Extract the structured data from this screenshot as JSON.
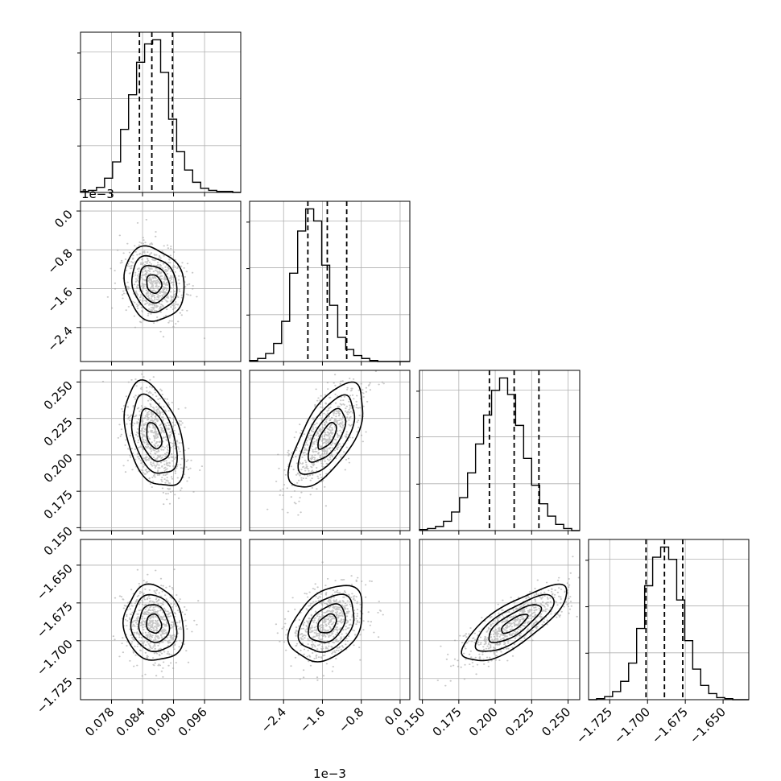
{
  "chart_data": {
    "type": "corner",
    "grid": true,
    "offset_labels": {
      "x_param2": "1e−3",
      "y_param2": "1e−3"
    },
    "params": [
      {
        "range": [
          0.072,
          0.103
        ],
        "ticks": [
          0.078,
          0.084,
          0.09,
          0.096
        ],
        "tick_labels": [
          "0.078",
          "0.084",
          "0.090",
          "0.096"
        ],
        "mean": 0.0862,
        "sigma": 0.0029,
        "quantiles": [
          0.0834,
          0.0858,
          0.0898
        ]
      },
      {
        "range": [
          -3.1,
          0.2
        ],
        "ticks": [
          -2.4,
          -1.6,
          -0.8,
          0.0
        ],
        "tick_labels": [
          "−2.4",
          "−1.6",
          "−0.8",
          "0.0"
        ],
        "mean": -1.5,
        "sigma": 0.38,
        "quantiles": [
          -1.9,
          -1.5,
          -1.1
        ]
      },
      {
        "range": [
          0.148,
          0.258
        ],
        "ticks": [
          0.15,
          0.175,
          0.2,
          0.225,
          0.25
        ],
        "tick_labels": [
          "0.150",
          "0.175",
          "0.200",
          "0.225",
          "0.250"
        ],
        "mean": 0.213,
        "sigma": 0.018,
        "quantiles": [
          0.196,
          0.213,
          0.23
        ]
      },
      {
        "range": [
          -1.739,
          -1.633
        ],
        "ticks": [
          -1.725,
          -1.7,
          -1.675,
          -1.65
        ],
        "tick_labels": [
          "−1.725",
          "−1.700",
          "−1.675",
          "−1.650"
        ],
        "mean": -1.6888,
        "sigma": 0.0125,
        "quantiles": [
          -1.701,
          -1.6888,
          -1.6767
        ]
      }
    ],
    "correlations": [
      {
        "i": 1,
        "j": 0,
        "rho": -0.15
      },
      {
        "i": 2,
        "j": 0,
        "rho": -0.4
      },
      {
        "i": 2,
        "j": 1,
        "rho": 0.65
      },
      {
        "i": 3,
        "j": 0,
        "rho": -0.1
      },
      {
        "i": 3,
        "j": 1,
        "rho": 0.35
      },
      {
        "i": 3,
        "j": 2,
        "rho": 0.78
      }
    ],
    "histograms": [
      {
        "counts": [
          1,
          2,
          5,
          14,
          30,
          62,
          96,
          128,
          146,
          150,
          118,
          72,
          40,
          22,
          10,
          4,
          2,
          1,
          1,
          0
        ]
      },
      {
        "counts": [
          1,
          3,
          8,
          18,
          40,
          88,
          130,
          152,
          140,
          96,
          56,
          24,
          12,
          6,
          3,
          1,
          0,
          0,
          0,
          0
        ]
      },
      {
        "counts": [
          1,
          2,
          4,
          9,
          18,
          32,
          56,
          84,
          112,
          136,
          148,
          132,
          102,
          70,
          44,
          26,
          14,
          6,
          2,
          0
        ]
      },
      {
        "counts": [
          0,
          1,
          3,
          8,
          18,
          36,
          70,
          112,
          140,
          150,
          138,
          98,
          58,
          30,
          14,
          6,
          2,
          1,
          0,
          0
        ]
      }
    ]
  }
}
